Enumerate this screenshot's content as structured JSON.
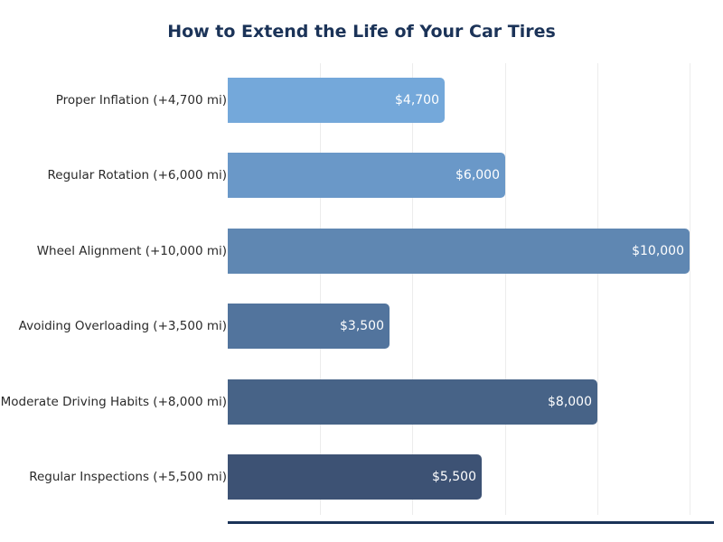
{
  "chart_data": {
    "type": "bar",
    "orientation": "horizontal",
    "title": "How to Extend the Life of Your Car Tires",
    "xlabel": "",
    "ylabel": "",
    "xlim": [
      0,
      10500
    ],
    "grid": true,
    "gridlines_x": [
      2000,
      4000,
      6000,
      8000,
      10000
    ],
    "categories": [
      "Proper Inflation (+4,700 mi)",
      "Regular Rotation (+6,000 mi)",
      "Wheel Alignment (+10,000 mi)",
      "Avoiding Overloading (+3,500 mi)",
      "Moderate Driving Habits (+8,000 mi)",
      "Regular Inspections (+5,500 mi)"
    ],
    "values": [
      4700,
      6000,
      10000,
      3500,
      8000,
      5500
    ],
    "value_labels": [
      "$4,700",
      "$6,000",
      "$10,000",
      "$3,500",
      "$8,000",
      "$5,500"
    ],
    "colors": [
      "#74a8da",
      "#6a98c8",
      "#5f87b2",
      "#52749d",
      "#476387",
      "#3d5274"
    ]
  },
  "title": "How to Extend the Life of Your Car Tires",
  "bars": [
    {
      "label": "Proper Inflation (+4,700 mi)",
      "value_label": "$4,700"
    },
    {
      "label": "Regular Rotation (+6,000 mi)",
      "value_label": "$6,000"
    },
    {
      "label": "Wheel Alignment (+10,000 mi)",
      "value_label": "$10,000"
    },
    {
      "label": "Avoiding Overloading (+3,500 mi)",
      "value_label": "$3,500"
    },
    {
      "label": "Moderate Driving Habits (+8,000 mi)",
      "value_label": "$8,000"
    },
    {
      "label": "Regular Inspections (+5,500 mi)",
      "value_label": "$5,500"
    }
  ]
}
